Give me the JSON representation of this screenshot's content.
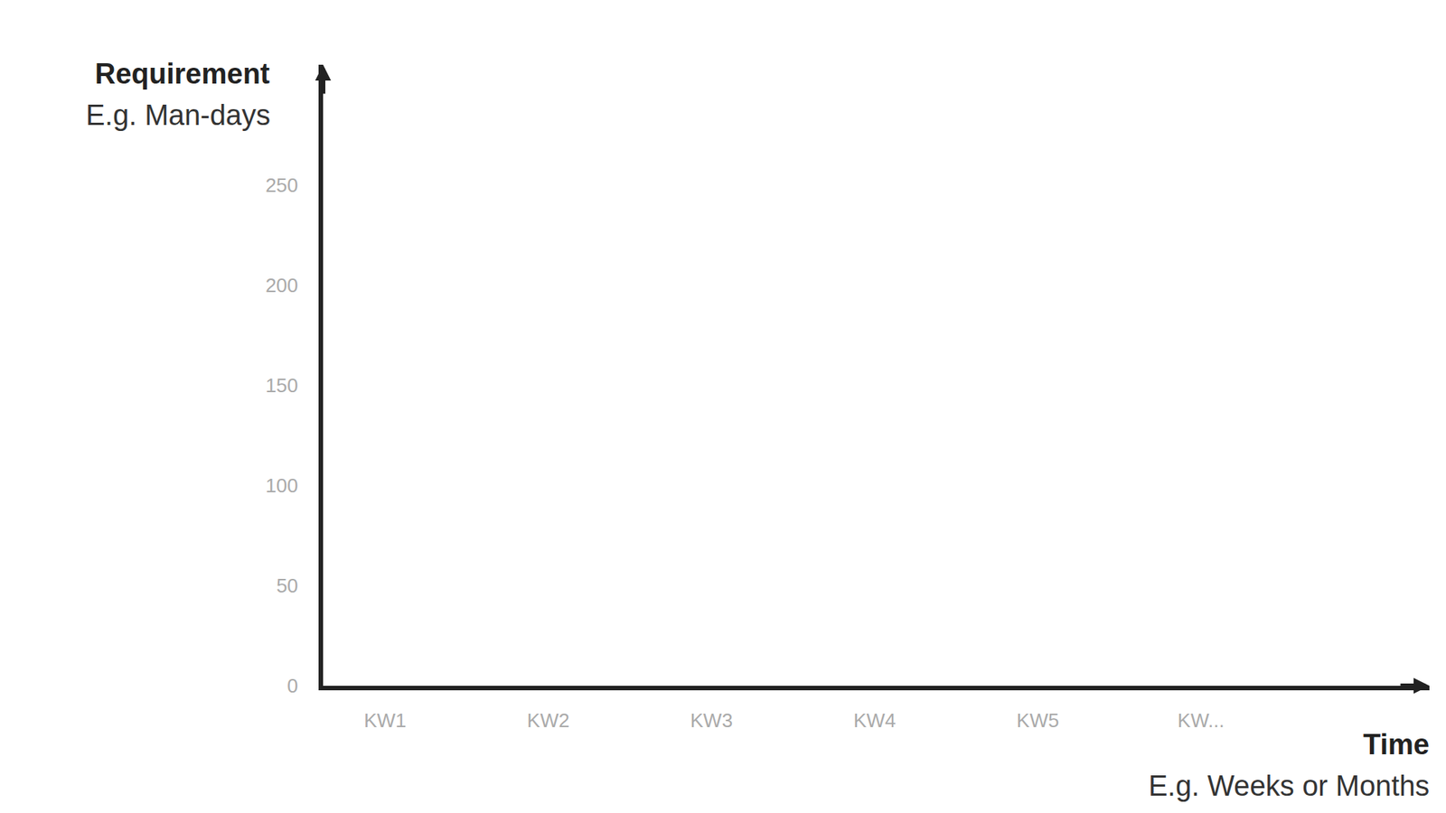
{
  "chart_data": {
    "type": "line",
    "y_label": "Requirement",
    "y_sublabel": "E.g. Man-days",
    "x_label": "Time",
    "x_sublabel": "E.g. Weeks or Months",
    "categories": [
      "KW1",
      "KW2",
      "KW3",
      "KW4",
      "KW5",
      "KW..."
    ],
    "values": [
      null,
      null,
      null,
      null,
      null,
      null
    ],
    "ylim": [
      0,
      310
    ],
    "yticks": [
      0,
      50,
      100,
      150,
      200,
      250
    ],
    "grid": false
  }
}
